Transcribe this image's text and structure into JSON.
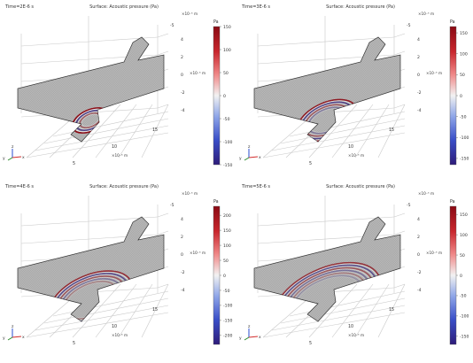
{
  "chart_data": [
    {
      "type": "surface-3d",
      "time_label": "Time=2E-6 s",
      "title": "Surface: Acoustic pressure (Pa)",
      "unit": "Pa",
      "colorbar": {
        "ticks": [
          150,
          100,
          50,
          0,
          -50,
          -100,
          -150
        ],
        "range": [
          -150,
          150
        ]
      },
      "z_axis": {
        "exponent_label": "×10⁻⁵ m",
        "ticks": [
          "4",
          "2",
          "0",
          "-2",
          "-4"
        ]
      },
      "y_axis": {
        "exponent_label": "×10⁻⁵ m",
        "ticks": [
          "-5",
          "0"
        ]
      },
      "x_axis": {
        "exponent_label": "×10⁻⁵ m",
        "ticks": [
          "5",
          "10",
          "15"
        ]
      },
      "wave": {
        "radius_fraction": 0.12,
        "rings": 3,
        "amplitude_fraction": 1.0
      }
    },
    {
      "type": "surface-3d",
      "time_label": "Time=3E-6 s",
      "title": "Surface: Acoustic pressure (Pa)",
      "unit": "Pa",
      "colorbar": {
        "ticks": [
          150,
          100,
          50,
          0,
          -50,
          -100,
          -150
        ],
        "range": [
          -165,
          165
        ]
      },
      "z_axis": {
        "exponent_label": "×10⁻⁵ m",
        "ticks": [
          "4",
          "2",
          "0",
          "-2",
          "-4"
        ]
      },
      "y_axis": {
        "exponent_label": "×10⁻⁵ m",
        "ticks": [
          "-5",
          "0"
        ]
      },
      "x_axis": {
        "exponent_label": "×10⁻⁵ m",
        "ticks": [
          "5",
          "10",
          "15"
        ]
      },
      "wave": {
        "radius_fraction": 0.2,
        "rings": 4,
        "amplitude_fraction": 0.9
      }
    },
    {
      "type": "surface-3d",
      "time_label": "Time=4E-6 s",
      "title": "Surface: Acoustic pressure (Pa)",
      "unit": "Pa",
      "colorbar": {
        "ticks": [
          200,
          150,
          100,
          50,
          0,
          -50,
          -100,
          -150,
          -200
        ],
        "range": [
          -230,
          230
        ]
      },
      "z_axis": {
        "exponent_label": "×10⁻⁵ m",
        "ticks": [
          "4",
          "2",
          "0",
          "-2",
          "-4"
        ]
      },
      "y_axis": {
        "exponent_label": "×10⁻⁵ m",
        "ticks": [
          "-5",
          "0"
        ]
      },
      "x_axis": {
        "exponent_label": "×10⁻⁵ m",
        "ticks": [
          "5",
          "10",
          "15"
        ]
      },
      "wave": {
        "radius_fraction": 0.28,
        "rings": 5,
        "amplitude_fraction": 0.8
      }
    },
    {
      "type": "surface-3d",
      "time_label": "Time=5E-6 s",
      "title": "Surface: Acoustic pressure (Pa)",
      "unit": "Pa",
      "colorbar": {
        "ticks": [
          150,
          100,
          50,
          0,
          -50,
          -100,
          -150
        ],
        "range": [
          -170,
          170
        ]
      },
      "z_axis": {
        "exponent_label": "×10⁻⁵ m",
        "ticks": [
          "4",
          "2",
          "0",
          "-2",
          "-4"
        ]
      },
      "y_axis": {
        "exponent_label": "×10⁻⁵ m",
        "ticks": [
          "-5",
          "0"
        ]
      },
      "x_axis": {
        "exponent_label": "×10⁻⁵ m",
        "ticks": [
          "5",
          "10",
          "15"
        ]
      },
      "wave": {
        "radius_fraction": 0.36,
        "rings": 6,
        "amplitude_fraction": 0.75
      }
    }
  ],
  "triad": {
    "x": "x",
    "y": "y",
    "z": "z"
  },
  "colors": {
    "positive": "#8b0a14",
    "negative": "#2e1c7a",
    "neutral": "#f2f2f2",
    "geometry_edge": "#333333",
    "grid": "#c9c9c9",
    "axis_x": "#d22c2c",
    "axis_y": "#2a8a2a",
    "axis_z": "#2a4ed2"
  }
}
